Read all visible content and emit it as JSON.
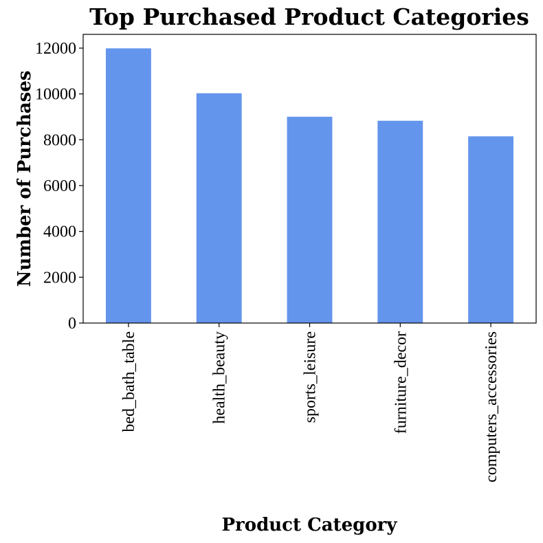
{
  "chart_data": {
    "type": "bar",
    "title": "Top Purchased Product Categories",
    "xlabel": "Product Category",
    "ylabel": "Number of Purchases",
    "categories": [
      "bed_bath_table",
      "health_beauty",
      "sports_leisure",
      "furniture_decor",
      "computers_accessories"
    ],
    "values": [
      11990,
      10030,
      9005,
      8830,
      8150
    ],
    "ylim": [
      0,
      12600
    ],
    "yticks": [
      0,
      2000,
      4000,
      6000,
      8000,
      10000,
      12000
    ],
    "yticks_labels": [
      "0",
      "2000",
      "4000",
      "6000",
      "8000",
      "10000",
      "12000"
    ],
    "bar_color": "#6495ED",
    "grid": false,
    "legend": "none"
  }
}
